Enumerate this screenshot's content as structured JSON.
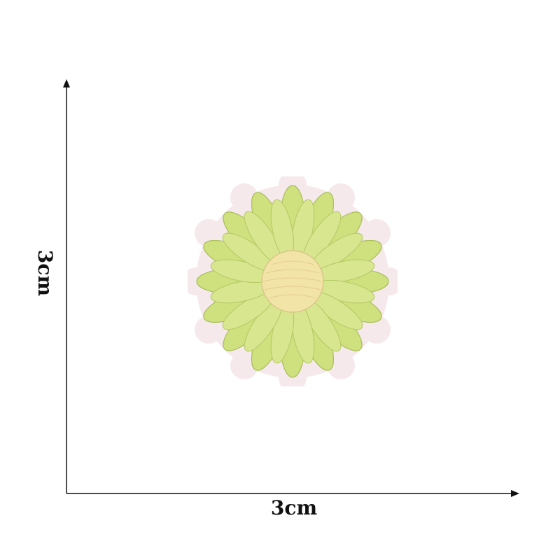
{
  "dimension_labels": {
    "width": "3cm",
    "height": "3cm"
  },
  "colors": {
    "axis": "#111111",
    "patch_border": "#f3e3e6",
    "petal": "#cfe07f",
    "petal_shade": "#a9bf58",
    "center": "#f2e3a6",
    "background": "#ffffff"
  },
  "subject": {
    "icon": "daisy-embroidered-patch"
  }
}
